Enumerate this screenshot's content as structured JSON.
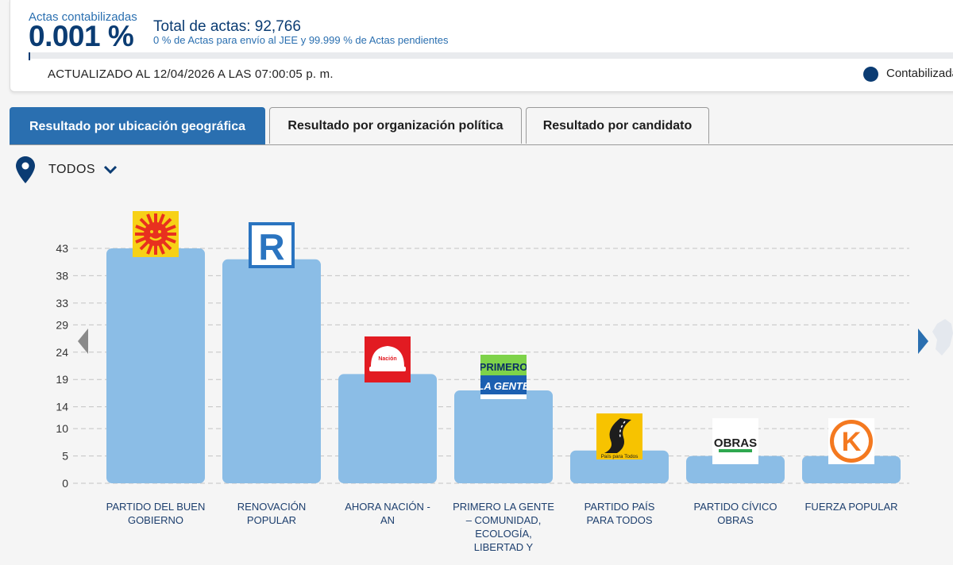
{
  "header": {
    "actas_label": "Actas contabilizadas",
    "actas_pct": "0.001 %",
    "total_label": "Total de actas: 92,766",
    "sub_text": "0 % de Actas para envío al JEE y 99.999 % de Actas pendientes",
    "progress_fraction": 1e-05,
    "updated": "ACTUALIZADO AL 12/04/2026 A LAS 07:00:05 p. m.",
    "legend_label": "Contabilizadas"
  },
  "tabs": [
    {
      "label": "Resultado por ubicación geográfica",
      "active": true
    },
    {
      "label": "Resultado por organización política",
      "active": false
    },
    {
      "label": "Resultado por candidato",
      "active": false
    }
  ],
  "filter": {
    "label": "TODOS"
  },
  "colors": {
    "primary": "#0b3c73",
    "accent": "#2a6fb0",
    "bar": "#8bbde6"
  },
  "chart_data": {
    "type": "bar",
    "yticks": [
      0,
      5,
      10,
      14,
      19,
      24,
      29,
      33,
      38,
      43
    ],
    "ylim": [
      0,
      43
    ],
    "grid": true,
    "categories": [
      [
        "PARTIDO DEL BUEN",
        "GOBIERNO"
      ],
      [
        "RENOVACIÓN",
        "POPULAR"
      ],
      [
        "AHORA NACIÓN -",
        "AN"
      ],
      [
        "PRIMERO LA GENTE",
        "– COMUNIDAD,",
        "ECOLOGÍA,",
        "LIBERTAD Y"
      ],
      [
        "PARTIDO PAÍS",
        "PARA TODOS"
      ],
      [
        "PARTIDO CÍVICO",
        "OBRAS"
      ],
      [
        "FUERZA POPULAR"
      ]
    ],
    "values": [
      43,
      41,
      20,
      17,
      6,
      5,
      5
    ],
    "logos": [
      {
        "icon": "sun-logo-icon"
      },
      {
        "icon": "r-logo-icon",
        "letter": "R"
      },
      {
        "icon": "helmet-logo-icon",
        "text": "Nación"
      },
      {
        "icon": "primero-la-gente-logo-icon",
        "line1": "PRIMERO",
        "line2": "LA GENTE"
      },
      {
        "icon": "road-logo-icon",
        "text": "País para Todos"
      },
      {
        "icon": "obras-logo-icon",
        "text": "OBRAS"
      },
      {
        "icon": "k-logo-icon",
        "letter": "K"
      }
    ]
  }
}
